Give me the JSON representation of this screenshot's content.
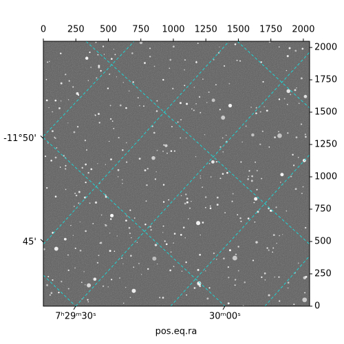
{
  "chart_data": {
    "type": "image",
    "xlabel": "pos.eq.ra",
    "xlim": [
      0,
      2048
    ],
    "ylim": [
      0,
      2048
    ],
    "xticks": [
      0,
      250,
      500,
      750,
      1000,
      1250,
      1500,
      1750,
      2000
    ],
    "yticks": [
      0,
      250,
      500,
      750,
      1000,
      1250,
      1500,
      1750,
      2000
    ],
    "ra_ticks": [
      {
        "value": 249,
        "label": "7ʰ29ᵐ30ˢ"
      },
      {
        "value": 1397,
        "label": "30ᵐ00ˢ"
      }
    ],
    "dec_ticks": [
      {
        "value": 1296,
        "label": "-11°50'"
      },
      {
        "value": 496,
        "label": "45'"
      }
    ],
    "grid_color": "#1fd6d6"
  }
}
